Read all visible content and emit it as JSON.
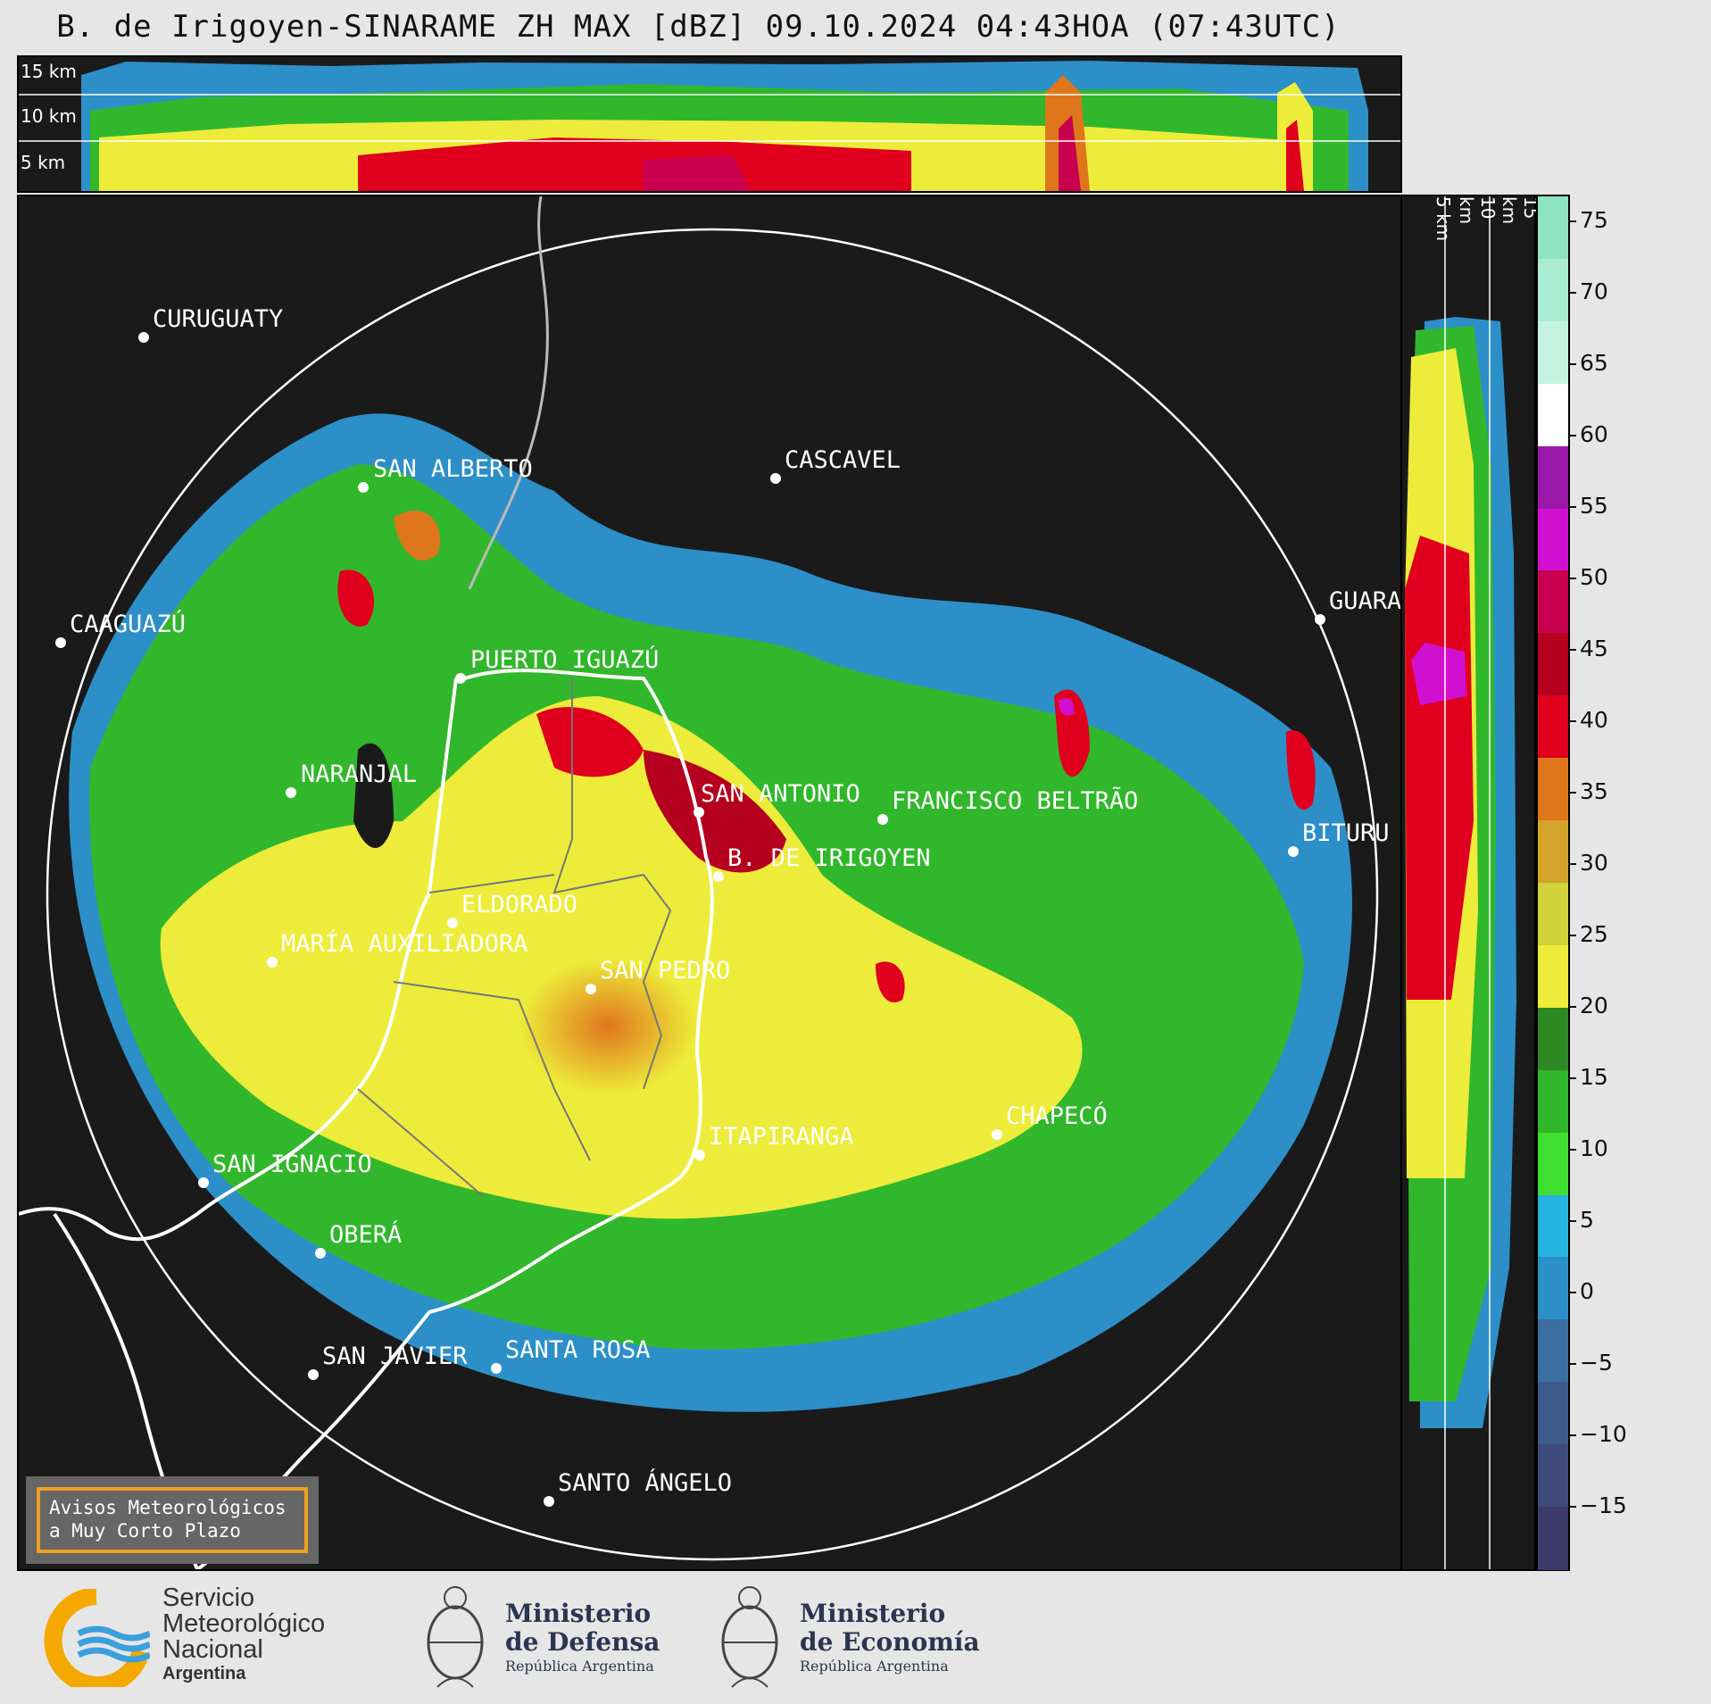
{
  "title": "B. de Irigoyen-SINARAME ZH MAX [dBZ] 09.10.2024 04:43HOA (07:43UTC)",
  "profile_labels": {
    "km15": "15 km",
    "km10": "10 km",
    "km5": "5 km"
  },
  "colorbar": {
    "ticks": [
      "75",
      "70",
      "65",
      "60",
      "55",
      "50",
      "45",
      "40",
      "35",
      "30",
      "25",
      "20",
      "15",
      "10",
      "5",
      "0",
      "−5",
      "−10",
      "−15"
    ],
    "bands": [
      "#8ee3c0",
      "#a9ecd3",
      "#c6f2e2",
      "#ffffff",
      "#9b18a8",
      "#d10fd0",
      "#c8004f",
      "#b5001f",
      "#e0001e",
      "#e0761c",
      "#d2a42a",
      "#d2d23a",
      "#edec3a",
      "#2f8a25",
      "#31b72b",
      "#3fe031",
      "#27b3e0",
      "#2c8fc8",
      "#3a6fa0",
      "#3d5a8c",
      "#3f4a7c",
      "#3e3b6a"
    ]
  },
  "cities": [
    {
      "name": "CURUGUATY"
    },
    {
      "name": "SAN ALBERTO"
    },
    {
      "name": "CASCAVEL"
    },
    {
      "name": "CAAGUAZÚ"
    },
    {
      "name": "GUARA"
    },
    {
      "name": "PUERTO IGUAZÚ"
    },
    {
      "name": "NARANJAL"
    },
    {
      "name": "SAN ANTONIO"
    },
    {
      "name": "FRANCISCO BELTRÃO"
    },
    {
      "name": "BITURU"
    },
    {
      "name": "B. DE IRIGOYEN"
    },
    {
      "name": "ELDORADO"
    },
    {
      "name": "MARÍA AUXILIADORA"
    },
    {
      "name": "SAN PEDRO"
    },
    {
      "name": "CHAPECÓ"
    },
    {
      "name": "ITAPIRANGA"
    },
    {
      "name": "SAN IGNACIO"
    },
    {
      "name": "OBERÁ"
    },
    {
      "name": "SAN JAVIER"
    },
    {
      "name": "SANTA ROSA"
    },
    {
      "name": "SANTO ÁNGELO"
    }
  ],
  "alert_box": {
    "line1": "Avisos Meteorológicos",
    "line2": "a Muy Corto Plazo"
  },
  "footer": {
    "smn": {
      "line1": "Servicio",
      "line2": "Meteorológico",
      "line3": "Nacional",
      "line4": "Argentina"
    },
    "defensa": {
      "line1": "Ministerio",
      "line2": "de Defensa",
      "line3": "República Argentina"
    },
    "economia": {
      "line1": "Ministerio",
      "line2": "de Economía",
      "line3": "República Argentina"
    }
  }
}
